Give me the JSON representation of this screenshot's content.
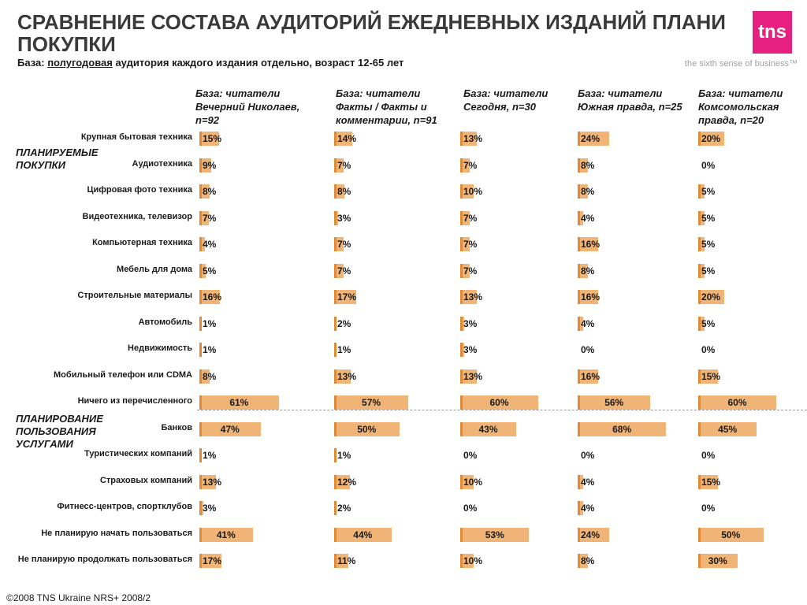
{
  "header": {
    "title_line1": "СРАВНЕНИЕ СОСТАВА АУДИТОРИЙ ЕЖЕДНЕВНЫХ ИЗДАНИЙ     ПЛАНИ",
    "title_line2": "ПОКУПКИ",
    "subtitle_prefix": "База: ",
    "subtitle_underlined": "полугодовая",
    "subtitle_rest": " аудитория каждого издания отдельно, возраст 12-65 лет"
  },
  "logo": {
    "text": "tns",
    "tagline": "the sixth sense of business™",
    "color": "#e5207e"
  },
  "sections": [
    {
      "label": "ПЛАНИРУЕМЫЕ ПОКУПКИ"
    },
    {
      "label": "ПЛАНИРОВАНИЕ ПОЛЬЗОВАНИЯ УСЛУГАМИ"
    }
  ],
  "footer": {
    "text": "©2008 TNS Ukraine  NRS+ 2008/2"
  },
  "chart_data": {
    "type": "bar",
    "orientation": "horizontal",
    "unit": "%",
    "bar_color": "#f0b476",
    "bar_edge_color": "#e08a35",
    "categories": [
      "Крупная бытовая техника",
      "Аудиотехника",
      "Цифровая фото техника",
      "Видеотехника, телевизор",
      "Компьютерная техника",
      "Мебель для дома",
      "Строительные материалы",
      "Автомобиль",
      "Недвижимость",
      "Мобильный телефон или CDMA",
      "Ничего из перечисленного",
      "Банков",
      "Туристических компаний",
      "Страховых компаний",
      "Фитнесс-центров, спортклубов",
      "Не планирую начать пользоваться",
      "Не планирую продолжать пользоваться"
    ],
    "series": [
      {
        "name": "База: читатели Вечерний Николаев, n=92",
        "values": [
          15,
          9,
          8,
          7,
          4,
          5,
          16,
          1,
          1,
          8,
          61,
          47,
          1,
          13,
          3,
          41,
          17
        ]
      },
      {
        "name": "База: читатели Факты / Факты и комментарии, n=91",
        "values": [
          14,
          7,
          8,
          3,
          7,
          7,
          17,
          2,
          1,
          13,
          57,
          50,
          1,
          12,
          2,
          44,
          11
        ]
      },
      {
        "name": "База: читатели Сегодня, n=30",
        "values": [
          13,
          7,
          10,
          7,
          7,
          7,
          13,
          3,
          3,
          13,
          60,
          43,
          0,
          10,
          0,
          53,
          10
        ]
      },
      {
        "name": "База: читатели Южная правда, n=25",
        "values": [
          24,
          8,
          8,
          4,
          16,
          8,
          16,
          4,
          0,
          16,
          56,
          68,
          0,
          4,
          4,
          24,
          8
        ]
      },
      {
        "name": "База: читатели Комсомольская правда, n=20",
        "values": [
          20,
          0,
          5,
          5,
          5,
          5,
          20,
          5,
          0,
          15,
          60,
          45,
          0,
          15,
          0,
          50,
          30
        ]
      }
    ]
  }
}
